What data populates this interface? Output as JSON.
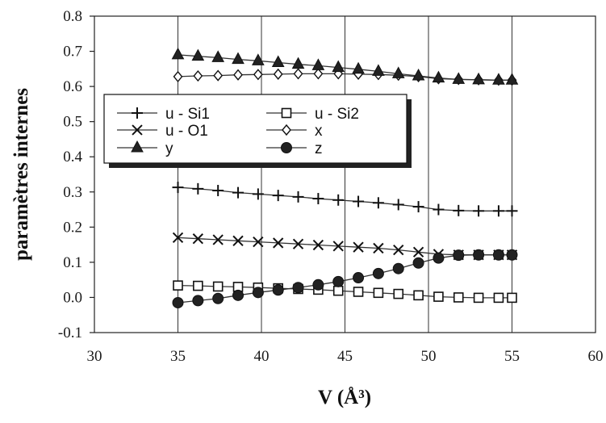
{
  "chart_data": {
    "type": "line",
    "title": "",
    "xlabel": "V (Å³)",
    "ylabel": "paramètres internes",
    "xlim": [
      30,
      60
    ],
    "ylim": [
      -0.1,
      0.8
    ],
    "xticks": [
      30,
      35,
      40,
      45,
      50,
      55,
      60
    ],
    "yticks": [
      "-0.1",
      "0.0",
      "0.1",
      "0.2",
      "0.3",
      "0.4",
      "0.5",
      "0.6",
      "0.7",
      "0.8"
    ],
    "grid": "vertical",
    "legend_position": "upper-left inside plot",
    "x": [
      35,
      36.2,
      37.4,
      38.6,
      39.8,
      41,
      42.2,
      43.4,
      44.6,
      45.8,
      47,
      48.2,
      49.4,
      50.6,
      51.8,
      53,
      54.2,
      55
    ],
    "series": [
      {
        "name": "u - Si1",
        "marker": "plus",
        "values": [
          0.313,
          0.309,
          0.304,
          0.298,
          0.294,
          0.29,
          0.286,
          0.281,
          0.277,
          0.273,
          0.269,
          0.264,
          0.258,
          0.25,
          0.247,
          0.246,
          0.246,
          0.246
        ]
      },
      {
        "name": "u - Si2",
        "marker": "square-open",
        "values": [
          0.034,
          0.033,
          0.031,
          0.03,
          0.028,
          0.026,
          0.024,
          0.022,
          0.019,
          0.016,
          0.013,
          0.01,
          0.006,
          0.002,
          0.0,
          -0.001,
          -0.001,
          -0.001
        ]
      },
      {
        "name": "u - O1",
        "marker": "x",
        "values": [
          0.17,
          0.167,
          0.164,
          0.161,
          0.158,
          0.155,
          0.152,
          0.149,
          0.146,
          0.143,
          0.14,
          0.135,
          0.129,
          0.123,
          0.121,
          0.121,
          0.121,
          0.121
        ]
      },
      {
        "name": "x",
        "marker": "diamond-open",
        "values": [
          0.628,
          0.63,
          0.631,
          0.633,
          0.634,
          0.635,
          0.636,
          0.636,
          0.636,
          0.635,
          0.634,
          0.632,
          0.628,
          0.622,
          0.62,
          0.619,
          0.618,
          0.618
        ]
      },
      {
        "name": "y",
        "marker": "triangle",
        "values": [
          0.69,
          0.686,
          0.682,
          0.677,
          0.673,
          0.668,
          0.663,
          0.659,
          0.654,
          0.649,
          0.643,
          0.636,
          0.63,
          0.624,
          0.62,
          0.619,
          0.618,
          0.618
        ]
      },
      {
        "name": "z",
        "marker": "circle",
        "values": [
          -0.015,
          -0.009,
          -0.003,
          0.006,
          0.014,
          0.021,
          0.028,
          0.036,
          0.045,
          0.056,
          0.068,
          0.082,
          0.098,
          0.112,
          0.12,
          0.121,
          0.121,
          0.121
        ]
      }
    ]
  }
}
